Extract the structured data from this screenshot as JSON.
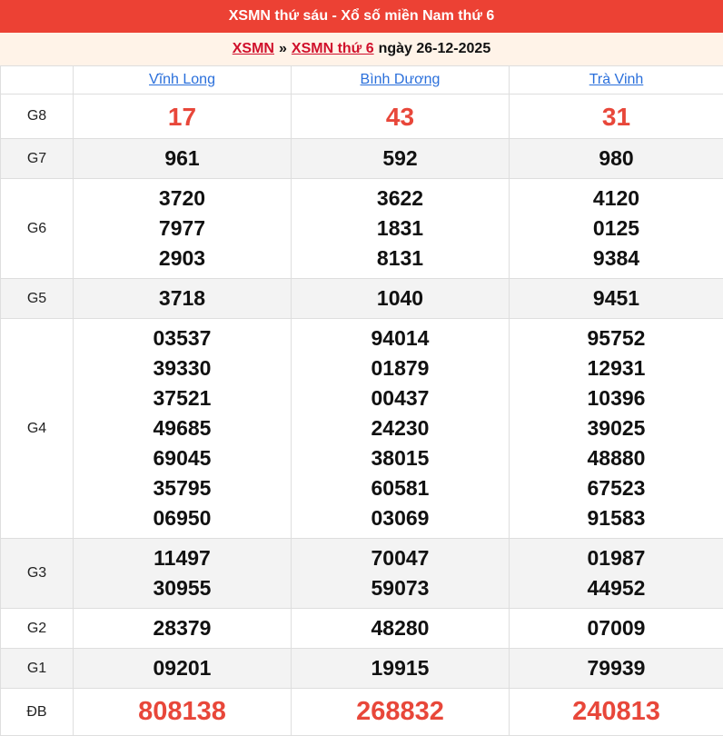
{
  "title": "XSMN thứ sáu - Xổ số miền Nam thứ 6",
  "breadcrumb": {
    "link1": "XSMN",
    "sep": "»",
    "link2": "XSMN thứ 6",
    "date_text": "ngày 26-12-2025"
  },
  "provinces": [
    "Vĩnh Long",
    "Bình Dương",
    "Trà Vinh"
  ],
  "colors": {
    "header_bg": "#ec4134",
    "accent_red": "#e8473a",
    "link_blue": "#2a6fdb"
  },
  "prizes": [
    {
      "label": "G8",
      "values": [
        [
          "17"
        ],
        [
          "43"
        ],
        [
          "31"
        ]
      ]
    },
    {
      "label": "G7",
      "values": [
        [
          "961"
        ],
        [
          "592"
        ],
        [
          "980"
        ]
      ]
    },
    {
      "label": "G6",
      "values": [
        [
          "3720",
          "7977",
          "2903"
        ],
        [
          "3622",
          "1831",
          "8131"
        ],
        [
          "4120",
          "0125",
          "9384"
        ]
      ]
    },
    {
      "label": "G5",
      "values": [
        [
          "3718"
        ],
        [
          "1040"
        ],
        [
          "9451"
        ]
      ]
    },
    {
      "label": "G4",
      "values": [
        [
          "03537",
          "39330",
          "37521",
          "49685",
          "69045",
          "35795",
          "06950"
        ],
        [
          "94014",
          "01879",
          "00437",
          "24230",
          "38015",
          "60581",
          "03069"
        ],
        [
          "95752",
          "12931",
          "10396",
          "39025",
          "48880",
          "67523",
          "91583"
        ]
      ]
    },
    {
      "label": "G3",
      "values": [
        [
          "11497",
          "30955"
        ],
        [
          "70047",
          "59073"
        ],
        [
          "01987",
          "44952"
        ]
      ]
    },
    {
      "label": "G2",
      "values": [
        [
          "28379"
        ],
        [
          "48280"
        ],
        [
          "07009"
        ]
      ]
    },
    {
      "label": "G1",
      "values": [
        [
          "09201"
        ],
        [
          "19915"
        ],
        [
          "79939"
        ]
      ]
    },
    {
      "label": "ĐB",
      "values": [
        [
          "808138"
        ],
        [
          "268832"
        ],
        [
          "240813"
        ]
      ]
    }
  ]
}
